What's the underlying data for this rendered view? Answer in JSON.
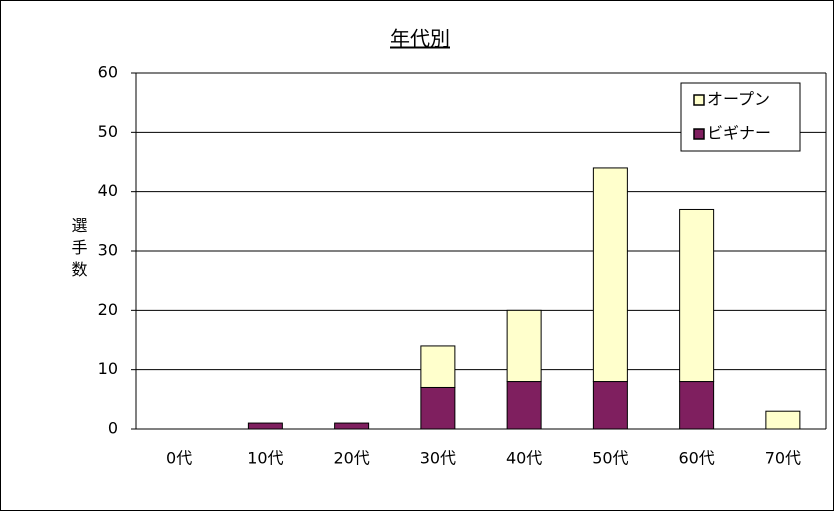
{
  "chart_data": {
    "type": "stacked_bar",
    "title": "年代別",
    "y_label": "選手数",
    "categories": [
      "0代",
      "10代",
      "20代",
      "30代",
      "40代",
      "50代",
      "60代",
      "70代"
    ],
    "series": [
      {
        "name": "ビギナー",
        "color": "#7f1f5f",
        "values": [
          0,
          1,
          1,
          7,
          8,
          8,
          8,
          0
        ]
      },
      {
        "name": "オープン",
        "color": "#ffffcc",
        "values": [
          0,
          0,
          0,
          7,
          12,
          36,
          29,
          3
        ]
      }
    ],
    "ylim": [
      0,
      60
    ],
    "yticks": [
      0,
      10,
      20,
      30,
      40,
      50,
      60
    ],
    "grid": true,
    "legend": "top-right"
  }
}
